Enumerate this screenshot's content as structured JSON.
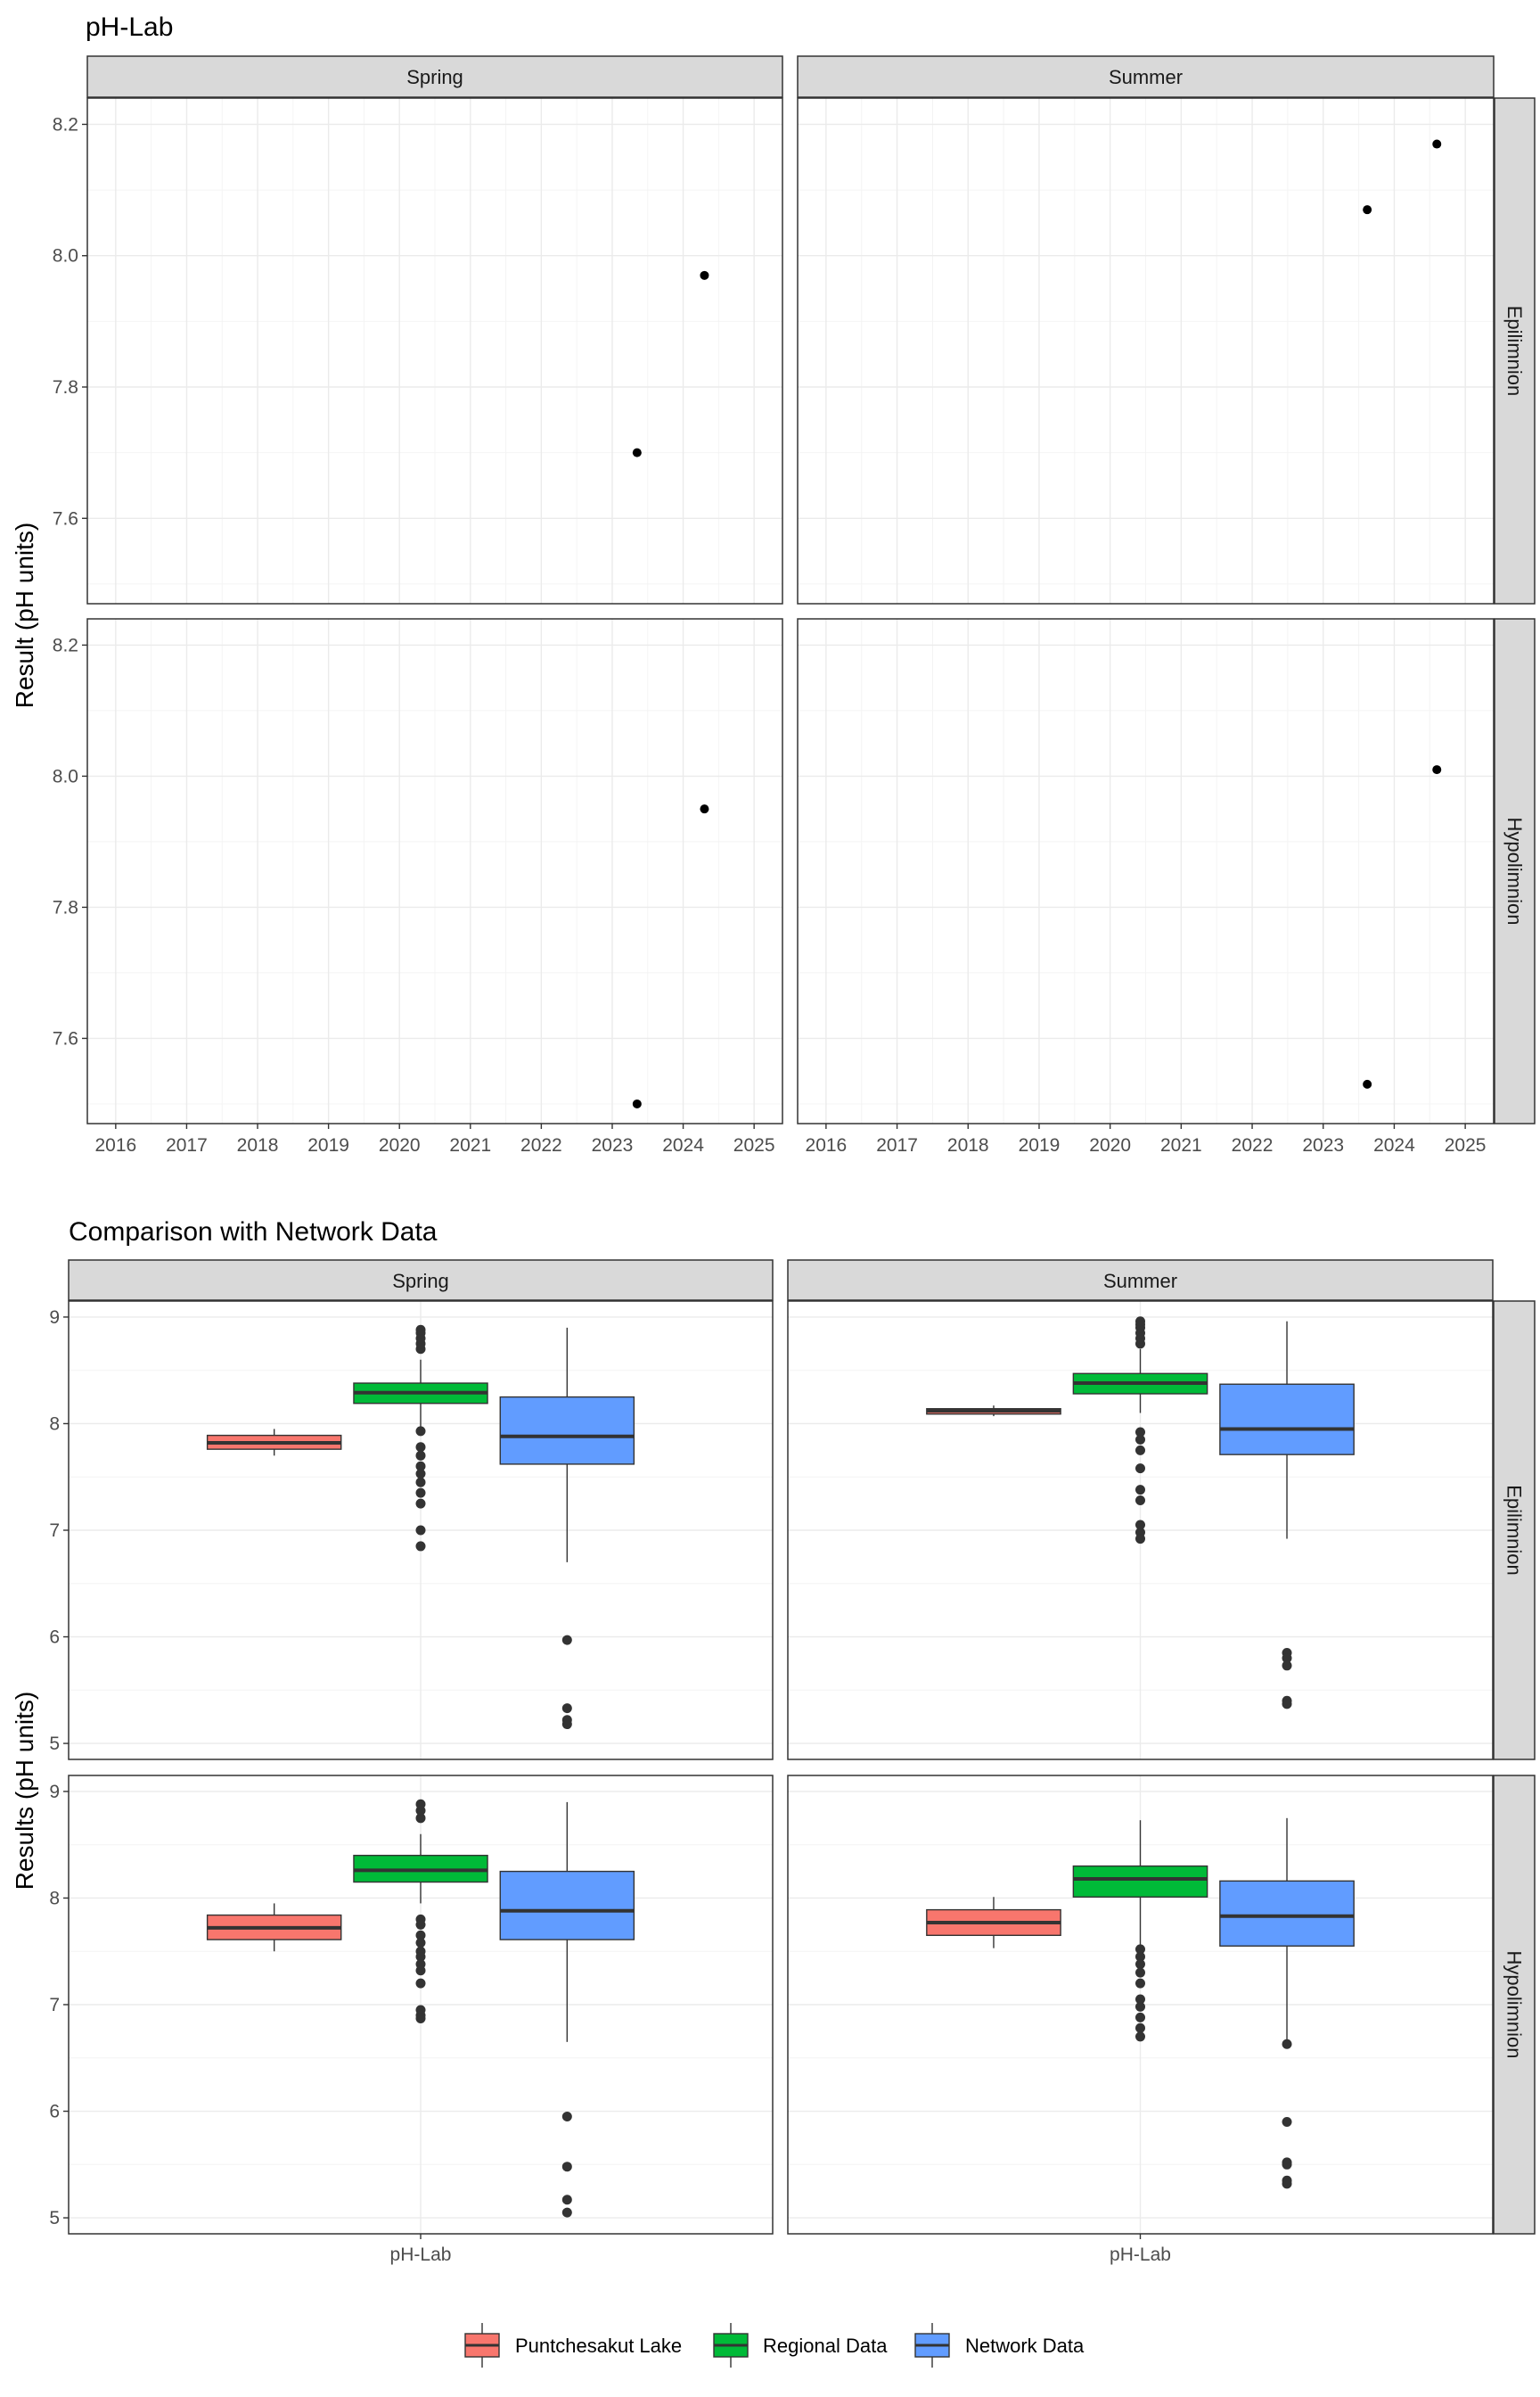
{
  "chart_data": [
    {
      "type": "scatter",
      "title": "pH-Lab",
      "ylabel": "Result (pH units)",
      "xlabel": "",
      "x_ticks": [
        "2016",
        "2017",
        "2018",
        "2019",
        "2020",
        "2021",
        "2022",
        "2023",
        "2024",
        "2025"
      ],
      "ylim": [
        7.47,
        8.24
      ],
      "y_ticks": [
        "7.6",
        "7.8",
        "8.0",
        "8.2"
      ],
      "x_range": [
        2015.6,
        2025.4
      ],
      "columns": [
        "Spring",
        "Summer"
      ],
      "rows": [
        "Epilimnion",
        "Hypolimnion"
      ],
      "grid": true,
      "panels": [
        {
          "season": "Spring",
          "layer": "Epilimnion",
          "points": [
            {
              "x": 2023.35,
              "y": 7.7
            },
            {
              "x": 2024.3,
              "y": 7.97
            }
          ]
        },
        {
          "season": "Summer",
          "layer": "Epilimnion",
          "points": [
            {
              "x": 2023.62,
              "y": 8.07
            },
            {
              "x": 2024.6,
              "y": 8.17
            }
          ]
        },
        {
          "season": "Spring",
          "layer": "Hypolimnion",
          "points": [
            {
              "x": 2023.35,
              "y": 7.5
            },
            {
              "x": 2024.3,
              "y": 7.95
            }
          ]
        },
        {
          "season": "Summer",
          "layer": "Hypolimnion",
          "points": [
            {
              "x": 2023.62,
              "y": 7.53
            },
            {
              "x": 2024.6,
              "y": 8.01
            }
          ]
        }
      ]
    },
    {
      "type": "box",
      "title": "Comparison with Network Data",
      "ylabel": "Results (pH units)",
      "xlabel": "",
      "category": "pH-Lab",
      "ylim": [
        4.85,
        9.15
      ],
      "y_ticks": [
        "5",
        "6",
        "7",
        "8",
        "9"
      ],
      "columns": [
        "Spring",
        "Summer"
      ],
      "rows": [
        "Epilimnion",
        "Hypolimnion"
      ],
      "grid": true,
      "legend_position": "bottom",
      "series": [
        {
          "name": "Puntchesakut Lake",
          "color": "#F8766D"
        },
        {
          "name": "Regional Data",
          "color": "#00BA38"
        },
        {
          "name": "Network Data",
          "color": "#619CFF"
        }
      ],
      "panels": [
        {
          "season": "Spring",
          "layer": "Epilimnion",
          "boxes": [
            {
              "series": "Puntchesakut Lake",
              "min": 7.7,
              "q1": 7.76,
              "median": 7.82,
              "q3": 7.89,
              "max": 7.95,
              "outliers": []
            },
            {
              "series": "Regional Data",
              "min": 7.97,
              "q1": 8.19,
              "median": 8.29,
              "q3": 8.38,
              "max": 8.6,
              "outliers": [
                8.7,
                8.75,
                8.8,
                8.85,
                8.88,
                7.93,
                7.78,
                7.7,
                7.6,
                7.53,
                7.45,
                7.35,
                7.25,
                7.0,
                6.85
              ]
            },
            {
              "series": "Network Data",
              "min": 6.7,
              "q1": 7.62,
              "median": 7.88,
              "q3": 8.25,
              "max": 8.9,
              "outliers": [
                5.97,
                5.33,
                5.22,
                5.18
              ]
            }
          ]
        },
        {
          "season": "Summer",
          "layer": "Epilimnion",
          "boxes": [
            {
              "series": "Puntchesakut Lake",
              "min": 8.07,
              "q1": 8.09,
              "median": 8.12,
              "q3": 8.14,
              "max": 8.17,
              "outliers": []
            },
            {
              "series": "Regional Data",
              "min": 8.1,
              "q1": 8.28,
              "median": 8.38,
              "q3": 8.47,
              "max": 8.7,
              "outliers": [
                8.75,
                8.8,
                8.85,
                8.9,
                8.93,
                8.96,
                7.92,
                7.85,
                7.75,
                7.58,
                7.38,
                7.28,
                7.05,
                6.98,
                6.92
              ]
            },
            {
              "series": "Network Data",
              "min": 6.92,
              "q1": 7.71,
              "median": 7.95,
              "q3": 8.37,
              "max": 8.96,
              "outliers": [
                5.85,
                5.8,
                5.73,
                5.4,
                5.37
              ]
            }
          ]
        },
        {
          "season": "Spring",
          "layer": "Hypolimnion",
          "boxes": [
            {
              "series": "Puntchesakut Lake",
              "min": 7.5,
              "q1": 7.61,
              "median": 7.72,
              "q3": 7.84,
              "max": 7.95,
              "outliers": []
            },
            {
              "series": "Regional Data",
              "min": 7.95,
              "q1": 8.15,
              "median": 8.26,
              "q3": 8.4,
              "max": 8.6,
              "outliers": [
                8.75,
                8.82,
                8.88,
                7.8,
                7.75,
                7.65,
                7.58,
                7.5,
                7.45,
                7.38,
                7.32,
                7.2,
                6.95,
                6.9,
                6.87
              ]
            },
            {
              "series": "Network Data",
              "min": 6.65,
              "q1": 7.61,
              "median": 7.88,
              "q3": 8.25,
              "max": 8.9,
              "outliers": [
                5.95,
                5.48,
                5.17,
                5.05
              ]
            }
          ]
        },
        {
          "season": "Summer",
          "layer": "Hypolimnion",
          "boxes": [
            {
              "series": "Puntchesakut Lake",
              "min": 7.53,
              "q1": 7.65,
              "median": 7.77,
              "q3": 7.89,
              "max": 8.01,
              "outliers": []
            },
            {
              "series": "Regional Data",
              "min": 7.55,
              "q1": 8.01,
              "median": 8.18,
              "q3": 8.3,
              "max": 8.73,
              "outliers": [
                7.52,
                7.45,
                7.38,
                7.3,
                7.2,
                7.05,
                6.98,
                6.88,
                6.78,
                6.7
              ]
            },
            {
              "series": "Network Data",
              "min": 6.65,
              "q1": 7.55,
              "median": 7.83,
              "q3": 8.16,
              "max": 8.75,
              "outliers": [
                6.63,
                5.9,
                5.52,
                5.5,
                5.35,
                5.32
              ]
            }
          ]
        }
      ]
    }
  ]
}
